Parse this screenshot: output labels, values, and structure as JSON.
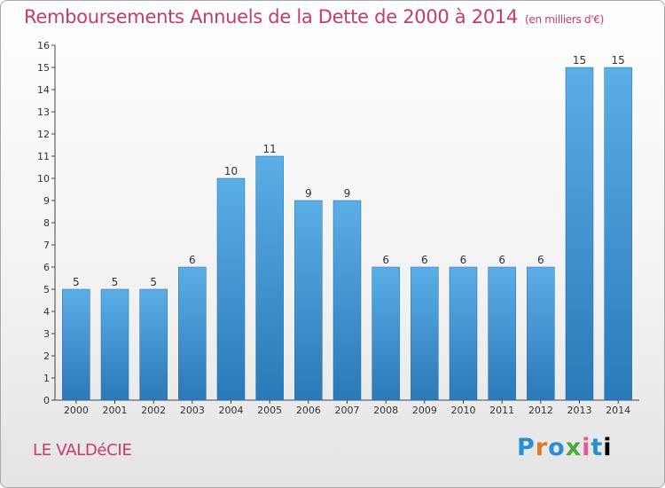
{
  "header": {
    "title": "Remboursements Annuels de la Dette de 2000 à 2014",
    "unit": "(en milliers d'€)"
  },
  "footer": {
    "commune": "LE VALDéCIE",
    "logo": [
      "P",
      "r",
      "o",
      "x",
      "i",
      "t",
      "i"
    ]
  },
  "colors": {
    "bar_top": "#5baee6",
    "bar_bottom": "#2a79b8",
    "title": "#c63a6e"
  },
  "chart_data": {
    "type": "bar",
    "title": "Remboursements Annuels de la Dette de 2000 à 2014",
    "xlabel": "",
    "ylabel": "",
    "categories": [
      "2000",
      "2001",
      "2002",
      "2003",
      "2004",
      "2005",
      "2006",
      "2007",
      "2008",
      "2009",
      "2010",
      "2011",
      "2012",
      "2013",
      "2014"
    ],
    "values": [
      5,
      5,
      5,
      6,
      10,
      11,
      9,
      9,
      6,
      6,
      6,
      6,
      6,
      15,
      15
    ],
    "ylim": [
      0,
      16
    ],
    "yticks": [
      0,
      1,
      2,
      3,
      4,
      5,
      6,
      7,
      8,
      9,
      10,
      11,
      12,
      13,
      14,
      15,
      16
    ],
    "grid": false,
    "legend": "none"
  }
}
